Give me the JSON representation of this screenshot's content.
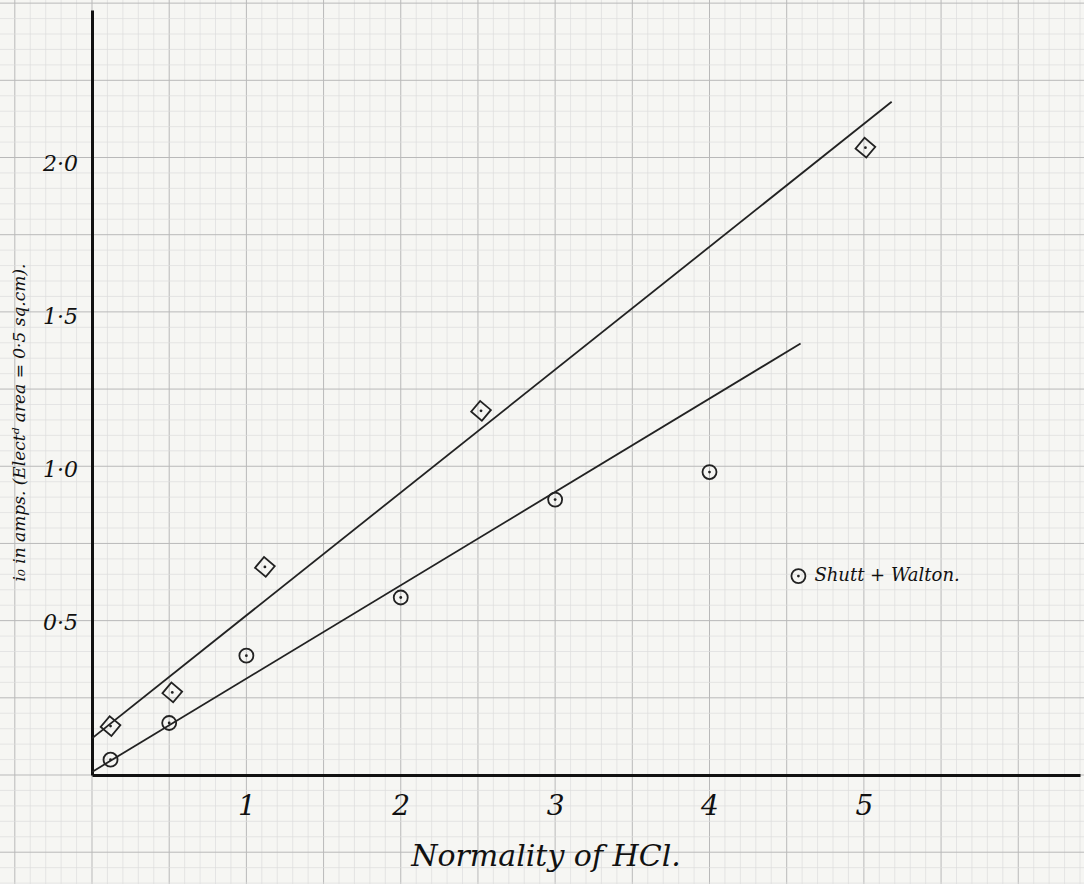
{
  "chart_data": {
    "type": "scatter",
    "x_label": "Normality of HCl.",
    "y_label": "i₀ in amps. (Electᵈ area = 0·5 sq.cm).",
    "xlim": [
      0,
      6.4
    ],
    "ylim": [
      0,
      2.5
    ],
    "xticks": [
      1,
      2,
      3,
      4,
      5
    ],
    "yticks": [
      {
        "value": 0.5,
        "label": "0·5"
      },
      {
        "value": 1.0,
        "label": "1·0"
      },
      {
        "value": 1.5,
        "label": "1·5"
      },
      {
        "value": 2.0,
        "label": "2·0"
      }
    ],
    "grid": true,
    "legend": "right",
    "series": [
      {
        "type": "scatter",
        "marker": "diamond",
        "color": "#222222",
        "x": [
          0.12,
          0.52,
          1.12,
          2.52,
          5.01
        ],
        "values": [
          0.16,
          0.27,
          0.68,
          1.19,
          2.05
        ]
      },
      {
        "name": "Shutt + Walton.",
        "type": "scatter",
        "marker": "circle",
        "color": "#222222",
        "x": [
          0.12,
          0.5,
          1.0,
          2.0,
          3.0,
          4.0
        ],
        "values": [
          0.05,
          0.17,
          0.39,
          0.58,
          0.9,
          0.99
        ]
      },
      {
        "type": "line",
        "line_style": "solid",
        "color": "#222222",
        "x": [
          0,
          5.18
        ],
        "values": [
          0.12,
          2.2
        ]
      },
      {
        "type": "line",
        "line_style": "solid",
        "color": "#222222",
        "x": [
          0,
          4.59
        ],
        "values": [
          0.01,
          1.41
        ]
      }
    ]
  }
}
